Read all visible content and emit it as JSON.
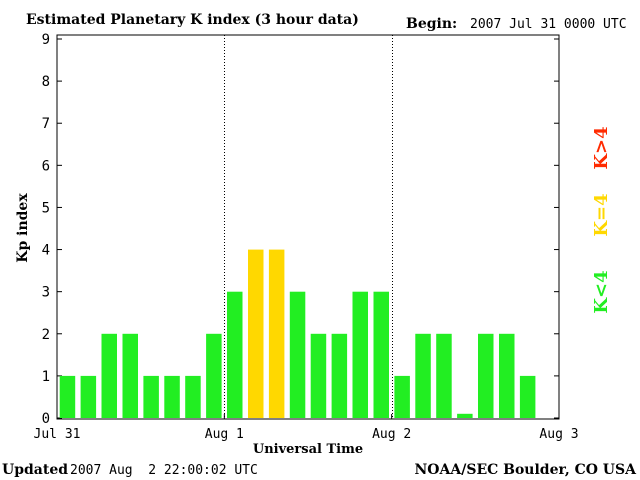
{
  "header": {
    "title": "Estimated Planetary K index (3 hour data)",
    "begin_label": "Begin:",
    "begin_value": "2007 Jul 31 0000 UTC"
  },
  "footer": {
    "updated_label": "Updated",
    "updated_value": "2007 Aug  2 22:00:02 UTC",
    "source": "NOAA/SEC Boulder, CO USA"
  },
  "legend": {
    "items": [
      {
        "label": "K>4",
        "color": "#ff2a00"
      },
      {
        "label": "K=4",
        "color": "#ffd800"
      },
      {
        "label": "K<4",
        "color": "#22ee22"
      }
    ]
  },
  "chart_data": {
    "type": "bar",
    "title": "Estimated Planetary K index (3 hour data)",
    "xlabel": "Universal Time",
    "ylabel": "Kp index",
    "ylim": [
      0,
      9
    ],
    "yticks": [
      "0",
      "1",
      "2",
      "3",
      "4",
      "5",
      "6",
      "7",
      "8",
      "9"
    ],
    "xtick_labels": [
      "Jul 31",
      "Aug 1",
      "Aug 2",
      "Aug 3"
    ],
    "day_dividers": true,
    "colors": {
      "low": "#22ee22",
      "mid": "#ffd800",
      "high": "#ff2a00"
    },
    "values": [
      1,
      1,
      2,
      2,
      1,
      1,
      1,
      2,
      3,
      4,
      4,
      3,
      2,
      2,
      3,
      3,
      1,
      2,
      2,
      0.1,
      2,
      2,
      1
    ]
  }
}
